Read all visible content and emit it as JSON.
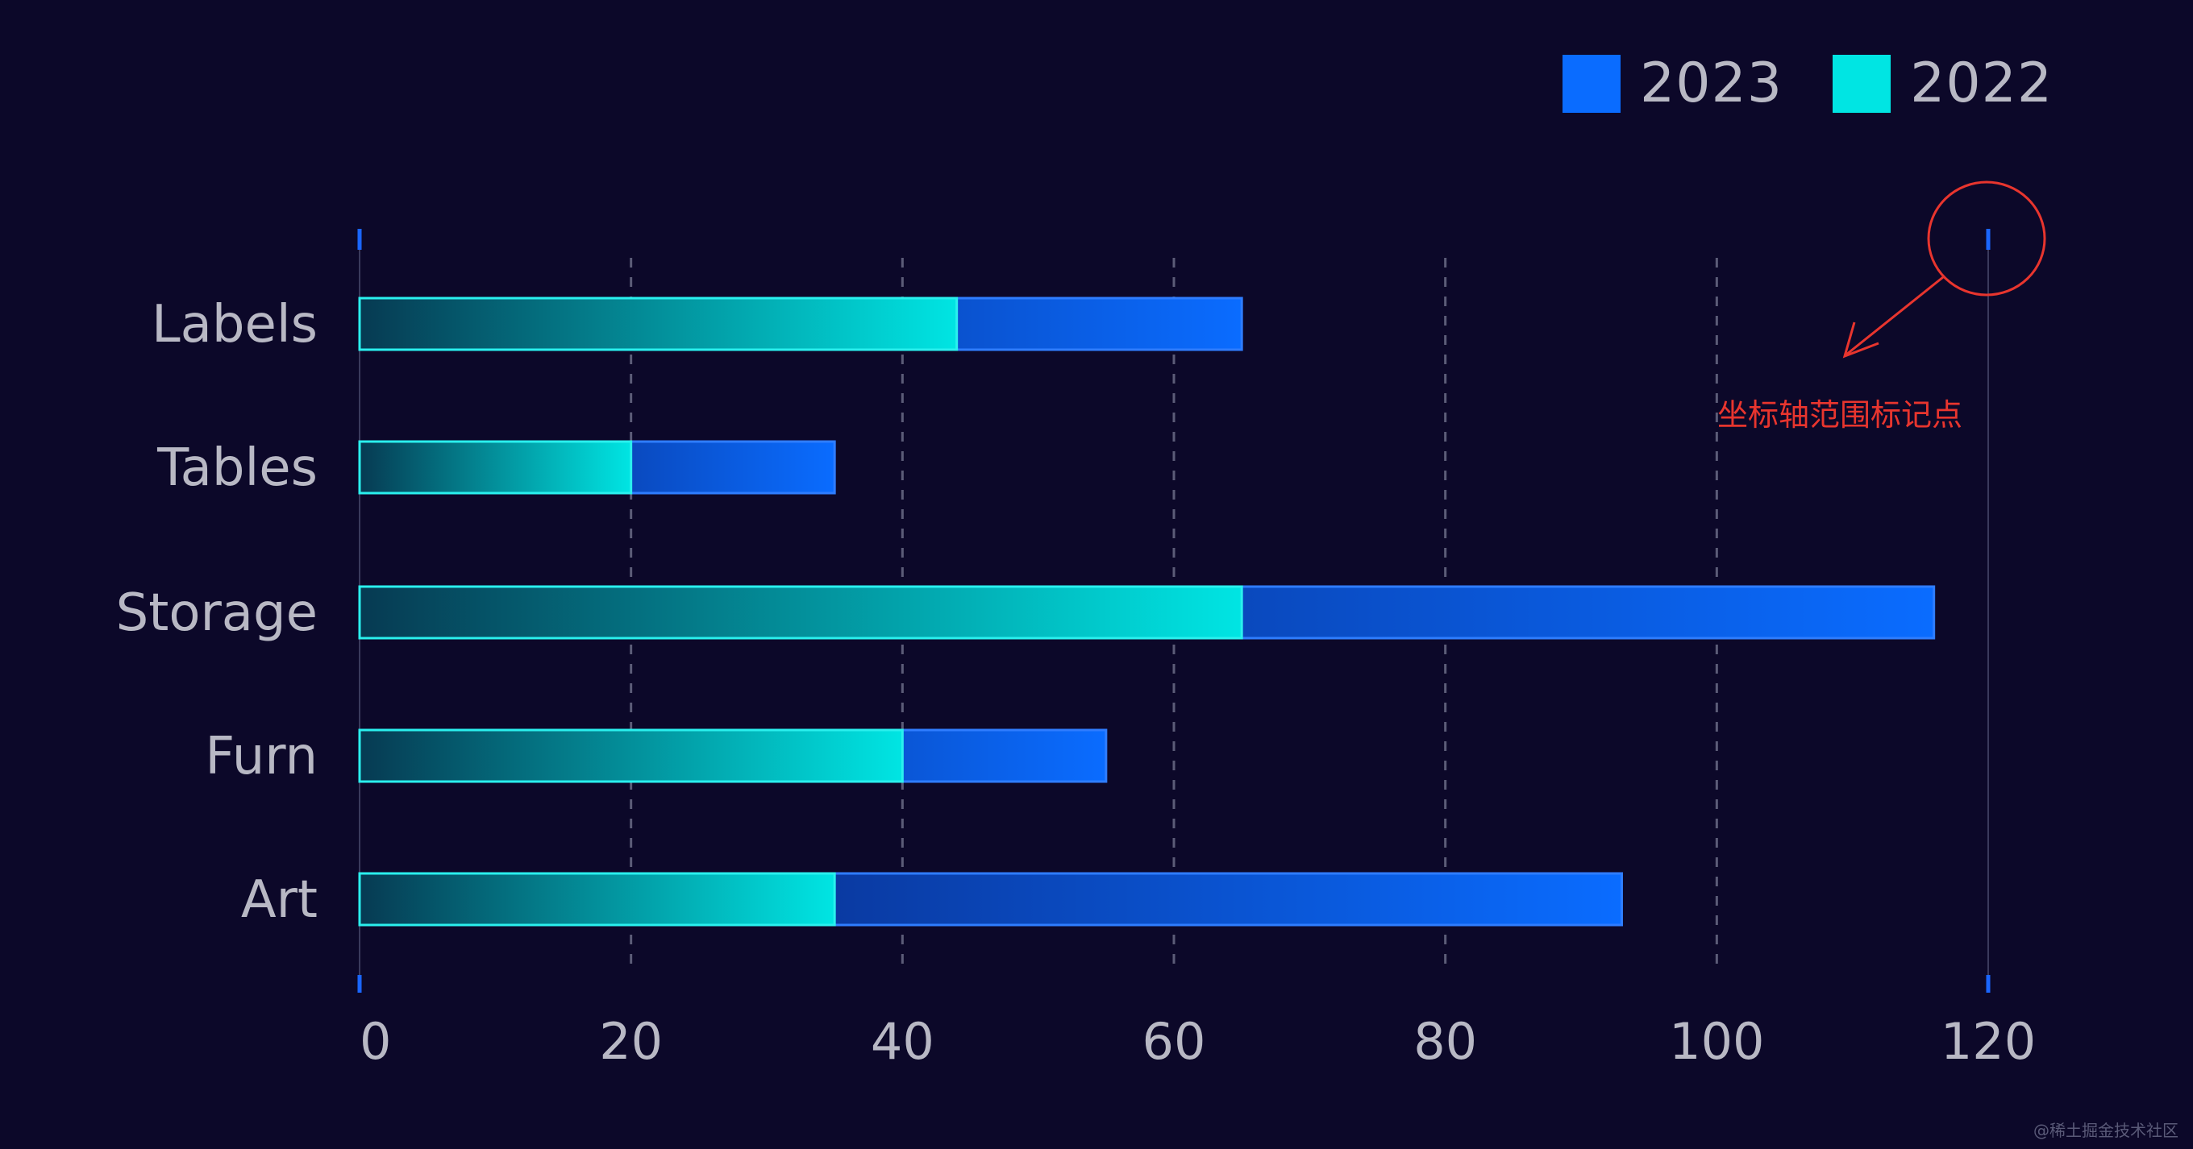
{
  "chart_data": {
    "type": "bar",
    "orientation": "horizontal",
    "categories": [
      "Labels",
      "Tables",
      "Storage",
      "Furn",
      "Art"
    ],
    "series": [
      {
        "name": "2023",
        "values": [
          65,
          35,
          116,
          55,
          93
        ],
        "color": "#0a6cff"
      },
      {
        "name": "2022",
        "values": [
          44,
          20,
          65,
          40,
          35
        ],
        "color": "#00e5e3"
      }
    ],
    "xlim": [
      0,
      120
    ],
    "xticks": [
      "0",
      "20",
      "40",
      "60",
      "80",
      "100",
      "120"
    ],
    "grid": true,
    "legend": "top-right",
    "title": "",
    "xlabel": "",
    "ylabel": ""
  },
  "annotation": {
    "text": "坐标轴范围标记点",
    "color": "#e8352e"
  },
  "watermark": "@稀土掘金技术社区",
  "colors": {
    "background": "#0c0829",
    "axis_marker": "#1a66ff",
    "grid": "#5c5c78",
    "label_text": "#b8b8c4"
  }
}
